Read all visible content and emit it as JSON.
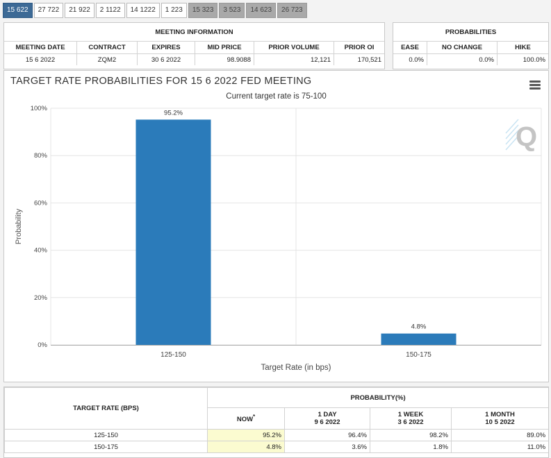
{
  "tabs": [
    {
      "label": "15 622",
      "state": "active"
    },
    {
      "label": "27 722",
      "state": "normal"
    },
    {
      "label": "21 922",
      "state": "normal"
    },
    {
      "label": "2 1122",
      "state": "normal"
    },
    {
      "label": "14 1222",
      "state": "normal"
    },
    {
      "label": "1 223",
      "state": "normal"
    },
    {
      "label": "15 323",
      "state": "gray"
    },
    {
      "label": "3 523",
      "state": "gray"
    },
    {
      "label": "14 623",
      "state": "gray"
    },
    {
      "label": "26 723",
      "state": "gray"
    }
  ],
  "meeting_info": {
    "title": "MEETING INFORMATION",
    "headers": [
      "MEETING DATE",
      "CONTRACT",
      "EXPIRES",
      "MID PRICE",
      "PRIOR VOLUME",
      "PRIOR OI"
    ],
    "row": [
      "15 6 2022",
      "ZQM2",
      "30 6 2022",
      "98.9088",
      "12,121",
      "170,521"
    ]
  },
  "probabilities": {
    "title": "PROBABILITIES",
    "headers": [
      "EASE",
      "NO CHANGE",
      "HIKE"
    ],
    "row": [
      "0.0%",
      "0.0%",
      "100.0%"
    ]
  },
  "chart": {
    "title": "TARGET RATE PROBABILITIES FOR 15 6 2022 FED MEETING",
    "subtitle": "Current target rate is 75-100",
    "menu_icon": "hamburger-menu-icon",
    "logo_icon": "q-logo-icon",
    "bar_color": "#2b7bba"
  },
  "chart_data": {
    "type": "bar",
    "title": "TARGET RATE PROBABILITIES FOR 15 6 2022 FED MEETING",
    "subtitle": "Current target rate is 75-100",
    "categories": [
      "125-150",
      "150-175"
    ],
    "values": [
      95.2,
      4.8
    ],
    "value_labels": [
      "95.2%",
      "4.8%"
    ],
    "xlabel": "Target Rate (in bps)",
    "ylabel": "Probability",
    "ylim": [
      0,
      100
    ],
    "yticks": [
      "0%",
      "20%",
      "40%",
      "60%",
      "80%",
      "100%"
    ],
    "grid": true,
    "legend": "none"
  },
  "rate_table": {
    "target_header": "TARGET RATE (BPS)",
    "prob_header": "PROBABILITY(%)",
    "now_label": "NOW",
    "now_marker": "*",
    "columns": [
      {
        "line1": "1 DAY",
        "line2": "9 6 2022"
      },
      {
        "line1": "1 WEEK",
        "line2": "3 6 2022"
      },
      {
        "line1": "1 MONTH",
        "line2": "10 5 2022"
      }
    ],
    "rows": [
      {
        "rate": "125-150",
        "now": "95.2%",
        "day": "96.4%",
        "week": "98.2%",
        "month": "89.0%"
      },
      {
        "rate": "150-175",
        "now": "4.8%",
        "day": "3.6%",
        "week": "1.8%",
        "month": "11.0%"
      }
    ]
  }
}
